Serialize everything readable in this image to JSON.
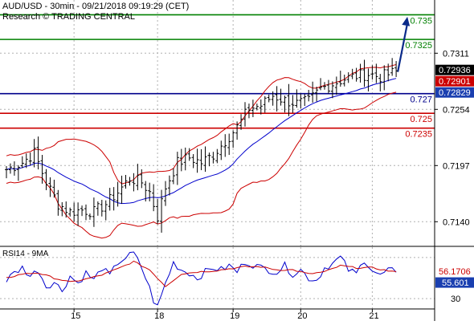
{
  "header": {
    "line1": "AUD/USD - 30min - 09/21/2018 09:19:29 (CET)",
    "line2": "Research © TRADING CENTRAL"
  },
  "chart_data": [
    {
      "type": "line",
      "panel": "price",
      "subtype": "bar-ohlc-with-bollinger-and-ma",
      "ylim": [
        0.7115,
        0.7365
      ],
      "y_ticks": [
        0.714,
        0.7197,
        0.7254,
        0.7311
      ],
      "y_tick_labels": [
        "0.7140",
        "0.7197",
        "0.7254",
        "0.7311"
      ],
      "x_day_ticks": [
        {
          "label": "15",
          "index": 17
        },
        {
          "label": "18",
          "index": 38
        },
        {
          "label": "19",
          "index": 57
        },
        {
          "label": "20",
          "index": 74
        },
        {
          "label": "21",
          "index": 92
        }
      ],
      "bars_count": 99,
      "ohlc_anchor_closes": [
        [
          0,
          0.7193
        ],
        [
          4,
          0.72
        ],
        [
          7,
          0.721
        ],
        [
          10,
          0.718
        ],
        [
          13,
          0.7158
        ],
        [
          16,
          0.715
        ],
        [
          19,
          0.7152
        ],
        [
          22,
          0.715
        ],
        [
          25,
          0.7158
        ],
        [
          28,
          0.717
        ],
        [
          31,
          0.7184
        ],
        [
          34,
          0.718
        ],
        [
          36,
          0.717
        ],
        [
          38,
          0.7145
        ],
        [
          40,
          0.7175
        ],
        [
          43,
          0.72
        ],
        [
          46,
          0.7205
        ],
        [
          49,
          0.72
        ],
        [
          52,
          0.7208
        ],
        [
          55,
          0.7222
        ],
        [
          58,
          0.7236
        ],
        [
          61,
          0.7255
        ],
        [
          64,
          0.7258
        ],
        [
          67,
          0.7268
        ],
        [
          70,
          0.7263
        ],
        [
          73,
          0.726
        ],
        [
          76,
          0.7262
        ],
        [
          79,
          0.7275
        ],
        [
          82,
          0.728
        ],
        [
          85,
          0.7285
        ],
        [
          88,
          0.7288
        ],
        [
          91,
          0.729
        ],
        [
          94,
          0.7287
        ],
        [
          97,
          0.7291
        ],
        [
          98,
          0.7292
        ]
      ],
      "price_labels": [
        {
          "text": "0.72936",
          "value": 0.72936,
          "style": "black"
        },
        {
          "text": "0.72901",
          "value": 0.72901,
          "style": "red"
        },
        {
          "text": "0.72829",
          "value": 0.72829,
          "style": "blue"
        }
      ],
      "levels": [
        {
          "value": 0.735,
          "label": "0.735",
          "color": "#008000"
        },
        {
          "value": 0.7325,
          "label": "0.7325",
          "color": "#008000"
        },
        {
          "value": 0.727,
          "label": "0.727",
          "color": "#00008b"
        },
        {
          "value": 0.725,
          "label": "0.725",
          "color": "#cc0000"
        },
        {
          "value": 0.7235,
          "label": "0.7235",
          "color": "#cc0000"
        }
      ],
      "target_arrow": {
        "from_index": 98,
        "from_value": 0.7292,
        "to_value": 0.7348
      },
      "colors": {
        "bars": "#000000",
        "bollinger": "#cc0000",
        "moving_average": "#0000cc",
        "grid": "#b0b0b0"
      },
      "grid": true
    },
    {
      "type": "line",
      "panel": "indicator",
      "title": "RSI14 - 9MA",
      "ylim": [
        20,
        80
      ],
      "y_ticks": [
        30
      ],
      "y_tick_labels": [
        "30"
      ],
      "series": [
        {
          "name": "RSI14",
          "color": "#0000cc",
          "anchors": [
            [
              0,
              48
            ],
            [
              2,
              55
            ],
            [
              4,
              60
            ],
            [
              6,
              52
            ],
            [
              8,
              58
            ],
            [
              10,
              42
            ],
            [
              12,
              46
            ],
            [
              14,
              38
            ],
            [
              16,
              52
            ],
            [
              18,
              45
            ],
            [
              20,
              55
            ],
            [
              22,
              48
            ],
            [
              24,
              60
            ],
            [
              26,
              52
            ],
            [
              28,
              65
            ],
            [
              30,
              70
            ],
            [
              32,
              74
            ],
            [
              34,
              60
            ],
            [
              36,
              40
            ],
            [
              37,
              28
            ],
            [
              38,
              22
            ],
            [
              40,
              45
            ],
            [
              42,
              65
            ],
            [
              44,
              58
            ],
            [
              46,
              55
            ],
            [
              48,
              50
            ],
            [
              50,
              56
            ],
            [
              52,
              60
            ],
            [
              54,
              58
            ],
            [
              56,
              62
            ],
            [
              58,
              56
            ],
            [
              60,
              66
            ],
            [
              62,
              63
            ],
            [
              64,
              60
            ],
            [
              66,
              58
            ],
            [
              68,
              56
            ],
            [
              70,
              62
            ],
            [
              72,
              54
            ],
            [
              74,
              58
            ],
            [
              76,
              50
            ],
            [
              78,
              48
            ],
            [
              80,
              60
            ],
            [
              82,
              64
            ],
            [
              84,
              70
            ],
            [
              86,
              58
            ],
            [
              88,
              54
            ],
            [
              90,
              68
            ],
            [
              92,
              58
            ],
            [
              94,
              52
            ],
            [
              96,
              58
            ],
            [
              98,
              55.6
            ]
          ],
          "last": 55.601,
          "last_label": "55.601"
        },
        {
          "name": "9MA",
          "color": "#cc0000",
          "anchors": [
            [
              0,
              50
            ],
            [
              4,
              54
            ],
            [
              8,
              55
            ],
            [
              12,
              50
            ],
            [
              16,
              46
            ],
            [
              20,
              49
            ],
            [
              24,
              53
            ],
            [
              28,
              59
            ],
            [
              32,
              66
            ],
            [
              36,
              58
            ],
            [
              40,
              42
            ],
            [
              44,
              54
            ],
            [
              48,
              56
            ],
            [
              52,
              57
            ],
            [
              56,
              59
            ],
            [
              60,
              61
            ],
            [
              64,
              61
            ],
            [
              68,
              58
            ],
            [
              72,
              58
            ],
            [
              76,
              54
            ],
            [
              80,
              56
            ],
            [
              84,
              62
            ],
            [
              88,
              60
            ],
            [
              92,
              60
            ],
            [
              96,
              57
            ],
            [
              98,
              56.2
            ]
          ],
          "last": 56.1706,
          "last_label": "56.1706"
        }
      ],
      "grid": true
    }
  ]
}
